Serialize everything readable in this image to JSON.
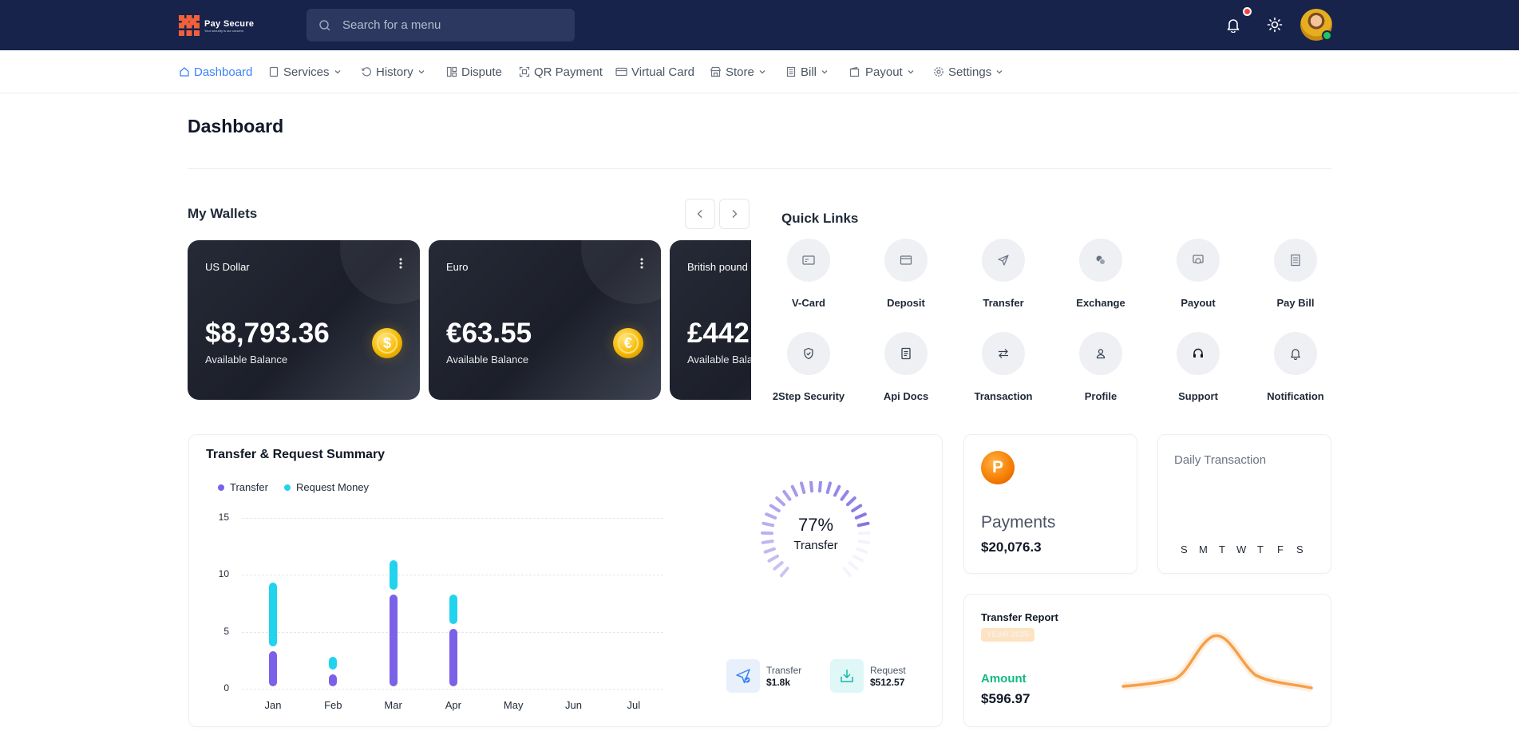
{
  "app": {
    "logo_name": "Pay Secure",
    "logo_tagline": "Your security is our concern"
  },
  "search": {
    "placeholder": "Search for a menu"
  },
  "nav": [
    {
      "label": "Dashboard",
      "icon": "home-icon",
      "active": true,
      "dropdown": false
    },
    {
      "label": "Services",
      "icon": "document-icon",
      "dropdown": true
    },
    {
      "label": "History",
      "icon": "history-icon",
      "dropdown": true
    },
    {
      "label": "Dispute",
      "icon": "layout-icon",
      "dropdown": false
    },
    {
      "label": "QR Payment",
      "icon": "qr-icon",
      "dropdown": false
    },
    {
      "label": "Virtual Card",
      "icon": "card-icon",
      "dropdown": false
    },
    {
      "label": "Store",
      "icon": "store-icon",
      "dropdown": true
    },
    {
      "label": "Bill",
      "icon": "bill-icon",
      "dropdown": true
    },
    {
      "label": "Payout",
      "icon": "wallet-icon",
      "dropdown": true
    },
    {
      "label": "Settings",
      "icon": "gear-icon",
      "dropdown": true
    }
  ],
  "page": {
    "title": "Dashboard"
  },
  "wallets": {
    "title": "My Wallets",
    "items": [
      {
        "currency": "US Dollar",
        "amount": "$8,793.36",
        "label": "Available Balance",
        "coin_symbol": "$"
      },
      {
        "currency": "Euro",
        "amount": "€63.55",
        "label": "Available Balance",
        "coin_symbol": "€"
      },
      {
        "currency": "British pound",
        "amount": "£442",
        "label": "Available Bala"
      }
    ]
  },
  "quick_links": {
    "title": "Quick Links",
    "items": [
      {
        "label": "V-Card",
        "icon": "vcard-icon"
      },
      {
        "label": "Deposit",
        "icon": "deposit-icon"
      },
      {
        "label": "Transfer",
        "icon": "send-icon"
      },
      {
        "label": "Exchange",
        "icon": "exchange-icon"
      },
      {
        "label": "Payout",
        "icon": "payout-icon"
      },
      {
        "label": "Pay Bill",
        "icon": "bill-icon"
      },
      {
        "label": "2Step Security",
        "icon": "shield-icon"
      },
      {
        "label": "Api Docs",
        "icon": "docs-icon"
      },
      {
        "label": "Transaction",
        "icon": "transaction-icon"
      },
      {
        "label": "Profile",
        "icon": "user-icon"
      },
      {
        "label": "Support",
        "icon": "headset-icon"
      },
      {
        "label": "Notification",
        "icon": "bell-icon"
      }
    ]
  },
  "summary": {
    "title": "Transfer & Request Summary",
    "gauge_percent": "77%",
    "gauge_label": "Transfer",
    "gauge_value": 77,
    "transfer": {
      "label": "Transfer",
      "value": "$1.8k"
    },
    "request": {
      "label": "Request",
      "value": "$512.57"
    }
  },
  "chart_data": {
    "type": "bar",
    "stacked": true,
    "categories": [
      "Jan",
      "Feb",
      "Mar",
      "Apr",
      "May",
      "Jun",
      "Jul"
    ],
    "series": [
      {
        "name": "Transfer",
        "color": "#7b61e8",
        "values": [
          3.5,
          1.5,
          8.5,
          5.5,
          0,
          0,
          0
        ]
      },
      {
        "name": "Request Money",
        "color": "#22d3ee",
        "values": [
          6,
          1.5,
          3,
          3,
          0,
          0,
          0
        ]
      }
    ],
    "ylim": [
      0,
      15
    ],
    "yticks": [
      0,
      5,
      10,
      15
    ],
    "grid": true,
    "legend": "top-left"
  },
  "payments": {
    "title": "Payments",
    "amount": "$20,076.3",
    "badge": "P"
  },
  "daily": {
    "title": "Daily Transaction",
    "days": [
      "S",
      "M",
      "T",
      "W",
      "T",
      "F",
      "S"
    ]
  },
  "transfer_report": {
    "title": "Transfer Report",
    "year": "YEAR 2025",
    "amount_label": "Amount",
    "amount": "$596.97"
  },
  "colors": {
    "topbar": "#17234a",
    "accent": "#3b82f6",
    "transfer": "#7b61e8",
    "request": "#22d3ee",
    "report_line": "#f5a04a",
    "amount_label": "#10b981"
  }
}
